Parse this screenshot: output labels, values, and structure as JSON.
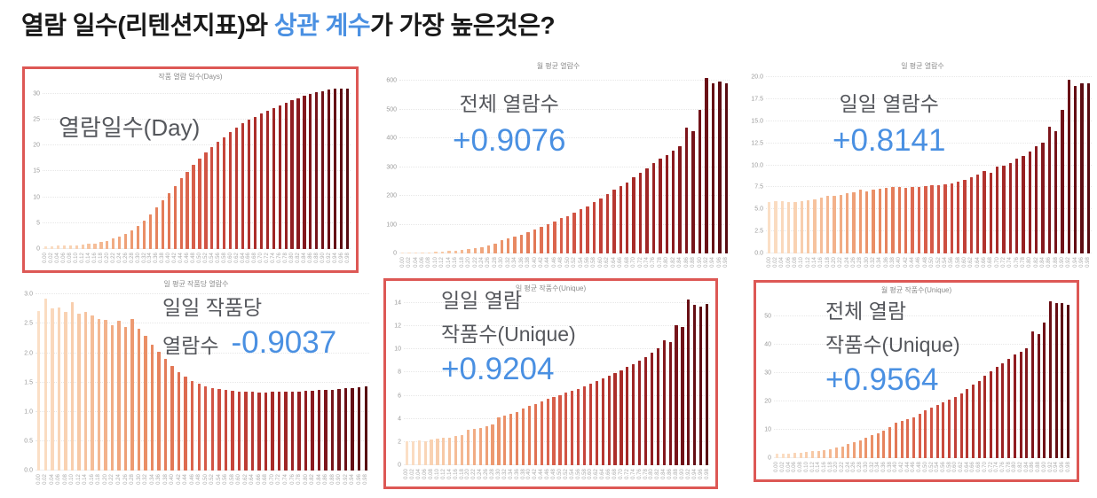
{
  "title": {
    "prefix": "열람 일수(리텐션지표)와 ",
    "highlight": "상관 계수",
    "suffix": "가 가장 높은것은?"
  },
  "colors": {
    "accent_blue": "#4a90e2",
    "highlight_border": "#dd5855",
    "overlay_text": "#55575c",
    "panel_title_text": "#8b8b8b",
    "axis_text": "#9b9b9b",
    "gridline": "#e7e7e7",
    "bar_gradient": [
      [
        0.0,
        "#fbdfc6"
      ],
      [
        0.1,
        "#f8cfae"
      ],
      [
        0.2,
        "#f3b38c"
      ],
      [
        0.3,
        "#ec966c"
      ],
      [
        0.4,
        "#e37a57"
      ],
      [
        0.5,
        "#d75c48"
      ],
      [
        0.6,
        "#c4433a"
      ],
      [
        0.7,
        "#aa2d29"
      ],
      [
        0.8,
        "#951f22"
      ],
      [
        0.88,
        "#7c151b"
      ],
      [
        1.0,
        "#570b11"
      ]
    ]
  },
  "x_labels": [
    "0.00",
    "0.02",
    "0.04",
    "0.06",
    "0.08",
    "0.10",
    "0.12",
    "0.14",
    "0.16",
    "0.18",
    "0.20",
    "0.22",
    "0.24",
    "0.26",
    "0.28",
    "0.30",
    "0.32",
    "0.34",
    "0.36",
    "0.38",
    "0.40",
    "0.42",
    "0.44",
    "0.46",
    "0.48",
    "0.50",
    "0.52",
    "0.54",
    "0.56",
    "0.58",
    "0.60",
    "0.62",
    "0.64",
    "0.66",
    "0.68",
    "0.70",
    "0.72",
    "0.74",
    "0.76",
    "0.78",
    "0.80",
    "0.82",
    "0.84",
    "0.86",
    "0.88",
    "0.90",
    "0.92",
    "0.94",
    "0.96",
    "0.98"
  ],
  "chart_data": [
    {
      "type": "bar",
      "title": "작품 열람 일수(Days)",
      "overlay": {
        "lines": [
          "열람일수(Day)"
        ],
        "value": null,
        "value_inline": false
      },
      "highlighted": true,
      "ylim": [
        0,
        31.8
      ],
      "ytick_labels": [
        "0",
        "5",
        "10",
        "15",
        "20",
        "25",
        "30"
      ],
      "yticks": [
        0,
        5,
        10,
        15,
        20,
        25,
        30
      ],
      "values": [
        0.6,
        0.6,
        0.65,
        0.7,
        0.7,
        0.75,
        0.85,
        0.95,
        1.1,
        1.3,
        1.6,
        2.0,
        2.4,
        2.9,
        3.6,
        4.5,
        5.5,
        6.7,
        8.0,
        9.4,
        10.8,
        12.2,
        13.6,
        14.9,
        16.2,
        17.4,
        18.6,
        19.7,
        20.7,
        21.6,
        22.5,
        23.4,
        24.2,
        24.9,
        25.5,
        26.1,
        26.7,
        27.2,
        27.7,
        28.2,
        28.7,
        29.1,
        29.5,
        29.9,
        30.2,
        30.5,
        30.7,
        30.9,
        31.0,
        31.0
      ]
    },
    {
      "type": "bar",
      "title": "월 평균 열람수",
      "overlay": {
        "lines": [
          "전체 열람수"
        ],
        "value": "+0.9076",
        "value_inline": false
      },
      "highlighted": false,
      "ylim": [
        0,
        625
      ],
      "ytick_labels": [
        "0",
        "100",
        "200",
        "300",
        "400",
        "500",
        "600"
      ],
      "yticks": [
        0,
        100,
        200,
        300,
        400,
        500,
        600
      ],
      "values": [
        2,
        2,
        3,
        3,
        4,
        5,
        6,
        8,
        10,
        13,
        16,
        19,
        23,
        28,
        34,
        45,
        52,
        58,
        66,
        75,
        84,
        92,
        101,
        112,
        122,
        130,
        141,
        153,
        164,
        178,
        192,
        205,
        221,
        233,
        245,
        264,
        280,
        297,
        315,
        330,
        343,
        358,
        372,
        436,
        425,
        500,
        610,
        592,
        596,
        592
      ]
    },
    {
      "type": "bar",
      "title": "일 평균 열람수",
      "overlay": {
        "lines": [
          "일일 열람수"
        ],
        "value": "+0.8141",
        "value_inline": false
      },
      "highlighted": false,
      "ylim": [
        0,
        20.4
      ],
      "ytick_labels": [
        "20.0",
        "17.5",
        "15.0",
        "12.5",
        "10.0",
        "7.5",
        "5.0",
        "2.5",
        "0.0"
      ],
      "yticks": [
        20,
        17.5,
        15,
        12.5,
        10,
        7.5,
        5,
        2.5,
        0
      ],
      "values": [
        5.8,
        5.9,
        5.9,
        5.8,
        5.8,
        5.9,
        6.0,
        6.1,
        6.3,
        6.5,
        6.5,
        6.6,
        6.8,
        6.9,
        7.2,
        7.0,
        7.2,
        7.3,
        7.4,
        7.5,
        7.5,
        7.4,
        7.5,
        7.5,
        7.6,
        7.7,
        7.7,
        7.8,
        7.9,
        8.1,
        8.3,
        8.6,
        8.9,
        9.3,
        9.1,
        9.9,
        10.0,
        10.3,
        10.8,
        11.1,
        11.6,
        12.2,
        12.6,
        14.4,
        13.9,
        16.3,
        19.7,
        19.0,
        19.3,
        19.3
      ]
    },
    {
      "type": "bar",
      "title": "일 평균 작품당 열람수",
      "overlay": {
        "lines": [
          "일일 작품당",
          "열람수"
        ],
        "value": "-0.9037",
        "value_inline": true
      },
      "highlighted": false,
      "ylim": [
        0,
        3.05
      ],
      "ytick_labels": [
        "0.0",
        "0.5",
        "1.0",
        "1.5",
        "2.0",
        "2.5",
        "3.0"
      ],
      "yticks": [
        0,
        0.5,
        1.0,
        1.5,
        2.0,
        2.5,
        3.0
      ],
      "values": [
        2.72,
        2.93,
        2.76,
        2.78,
        2.7,
        2.87,
        2.68,
        2.7,
        2.64,
        2.58,
        2.56,
        2.48,
        2.55,
        2.44,
        2.58,
        2.42,
        2.3,
        2.15,
        2.02,
        1.9,
        1.78,
        1.68,
        1.6,
        1.53,
        1.48,
        1.44,
        1.41,
        1.39,
        1.37,
        1.36,
        1.35,
        1.34,
        1.34,
        1.33,
        1.33,
        1.34,
        1.34,
        1.34,
        1.35,
        1.35,
        1.36,
        1.36,
        1.37,
        1.37,
        1.38,
        1.39,
        1.4,
        1.41,
        1.42,
        1.44
      ]
    },
    {
      "type": "bar",
      "title": "일 평균 작품수(Unique)",
      "overlay": {
        "lines": [
          "일일 열람",
          "작품수(Unique)"
        ],
        "value": "+0.9204",
        "value_inline": false
      },
      "highlighted": true,
      "ylim": [
        0,
        14.6
      ],
      "ytick_labels": [
        "0",
        "2",
        "4",
        "6",
        "8",
        "10",
        "12",
        "14"
      ],
      "yticks": [
        0,
        2,
        4,
        6,
        8,
        10,
        12,
        14
      ],
      "values": [
        2.1,
        2.1,
        2.15,
        2.1,
        2.2,
        2.3,
        2.35,
        2.4,
        2.5,
        2.6,
        3.05,
        3.1,
        3.2,
        3.35,
        3.5,
        4.15,
        4.3,
        4.45,
        4.6,
        4.9,
        5.15,
        5.3,
        5.5,
        5.7,
        5.9,
        6.05,
        6.25,
        6.4,
        6.6,
        6.8,
        7.05,
        7.25,
        7.5,
        7.7,
        7.95,
        8.2,
        8.5,
        8.7,
        9.0,
        9.35,
        9.7,
        10.1,
        10.8,
        10.6,
        12.1,
        11.9,
        14.3,
        13.8,
        13.7,
        13.9
      ]
    },
    {
      "type": "bar",
      "title": "월 평균 작품수(Unique)",
      "overlay": {
        "lines": [
          "전체 열람",
          "작품수(Unique)"
        ],
        "value": "+0.9564",
        "value_inline": false
      },
      "highlighted": true,
      "ylim": [
        0,
        56.5
      ],
      "ytick_labels": [
        "0",
        "10",
        "20",
        "30",
        "40",
        "50"
      ],
      "yticks": [
        0,
        10,
        20,
        30,
        40,
        50
      ],
      "values": [
        1.5,
        1.6,
        1.7,
        1.85,
        2.0,
        2.2,
        2.4,
        2.6,
        2.9,
        3.2,
        3.6,
        4.2,
        5.0,
        5.7,
        6.4,
        7.2,
        8.0,
        8.9,
        9.8,
        11.0,
        12.4,
        13.1,
        13.8,
        14.5,
        15.7,
        17.0,
        17.9,
        18.8,
        19.7,
        20.6,
        21.5,
        22.9,
        24.3,
        25.8,
        27.3,
        28.9,
        30.6,
        32.1,
        33.5,
        35.0,
        36.4,
        37.6,
        38.8,
        44.6,
        43.7,
        47.8,
        55.3,
        54.5,
        54.6,
        53.9
      ]
    }
  ]
}
